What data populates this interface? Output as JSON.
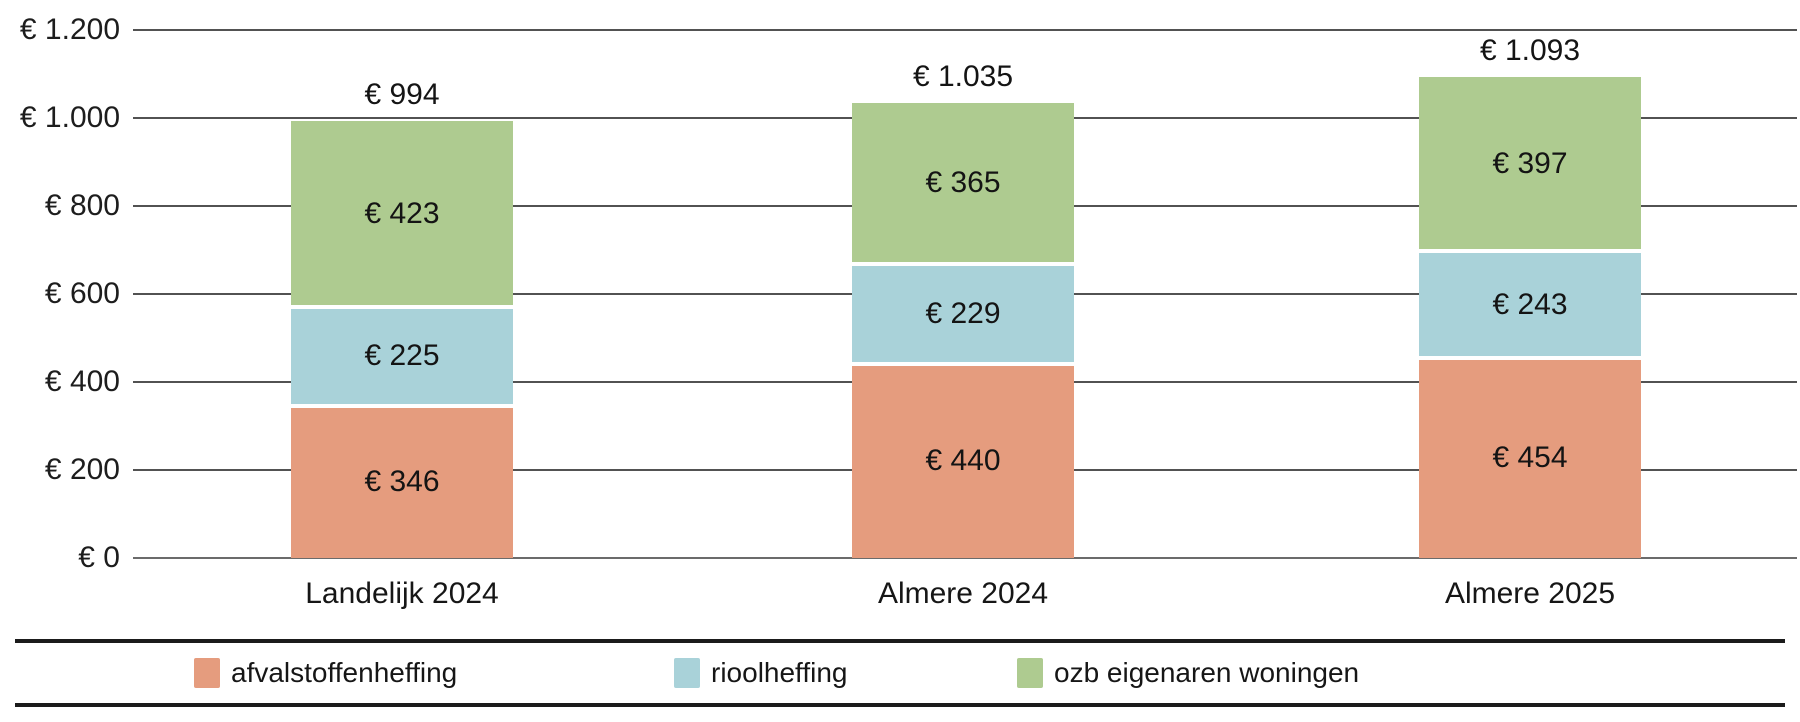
{
  "chart_data": {
    "type": "bar",
    "stacked": true,
    "title": "",
    "xlabel": "",
    "ylabel": "",
    "categories": [
      "Landelijk 2024",
      "Almere 2024",
      "Almere 2025"
    ],
    "series": [
      {
        "name": "afvalstoffenheffing",
        "color": "#e59c7e",
        "values": [
          346,
          440,
          454
        ],
        "value_labels": [
          "€ 346",
          "€ 440",
          "€ 454"
        ]
      },
      {
        "name": "rioolheffing",
        "color": "#a9d2d9",
        "values": [
          225,
          229,
          243
        ],
        "value_labels": [
          "€ 225",
          "€ 229",
          "€ 243"
        ]
      },
      {
        "name": "ozb eigenaren woningen",
        "color": "#aecb90",
        "values": [
          423,
          365,
          397
        ],
        "value_labels": [
          "€ 423",
          "€ 365",
          "€ 397"
        ]
      }
    ],
    "totals": [
      994,
      1035,
      1093
    ],
    "total_labels": [
      "€ 994",
      "€ 1.035",
      "€ 1.093"
    ],
    "y_axis": {
      "min": 0,
      "max": 1200,
      "step": 200,
      "tick_labels": [
        "€ 0",
        "€ 200",
        "€ 400",
        "€ 600",
        "€ 800",
        "€ 1.000",
        "€ 1.200"
      ]
    },
    "ylim": [
      0,
      1200
    ],
    "grid": true,
    "legend_position": "bottom",
    "legend": [
      "afvalstoffenheffing",
      "rioolheffing",
      "ozb eigenaren woningen"
    ]
  },
  "palette": {
    "background": "#ffffff",
    "gridline": "#525252",
    "baseline": "#6b6b6b",
    "legend_rule": "#1b1b1b",
    "text": "#161616"
  }
}
